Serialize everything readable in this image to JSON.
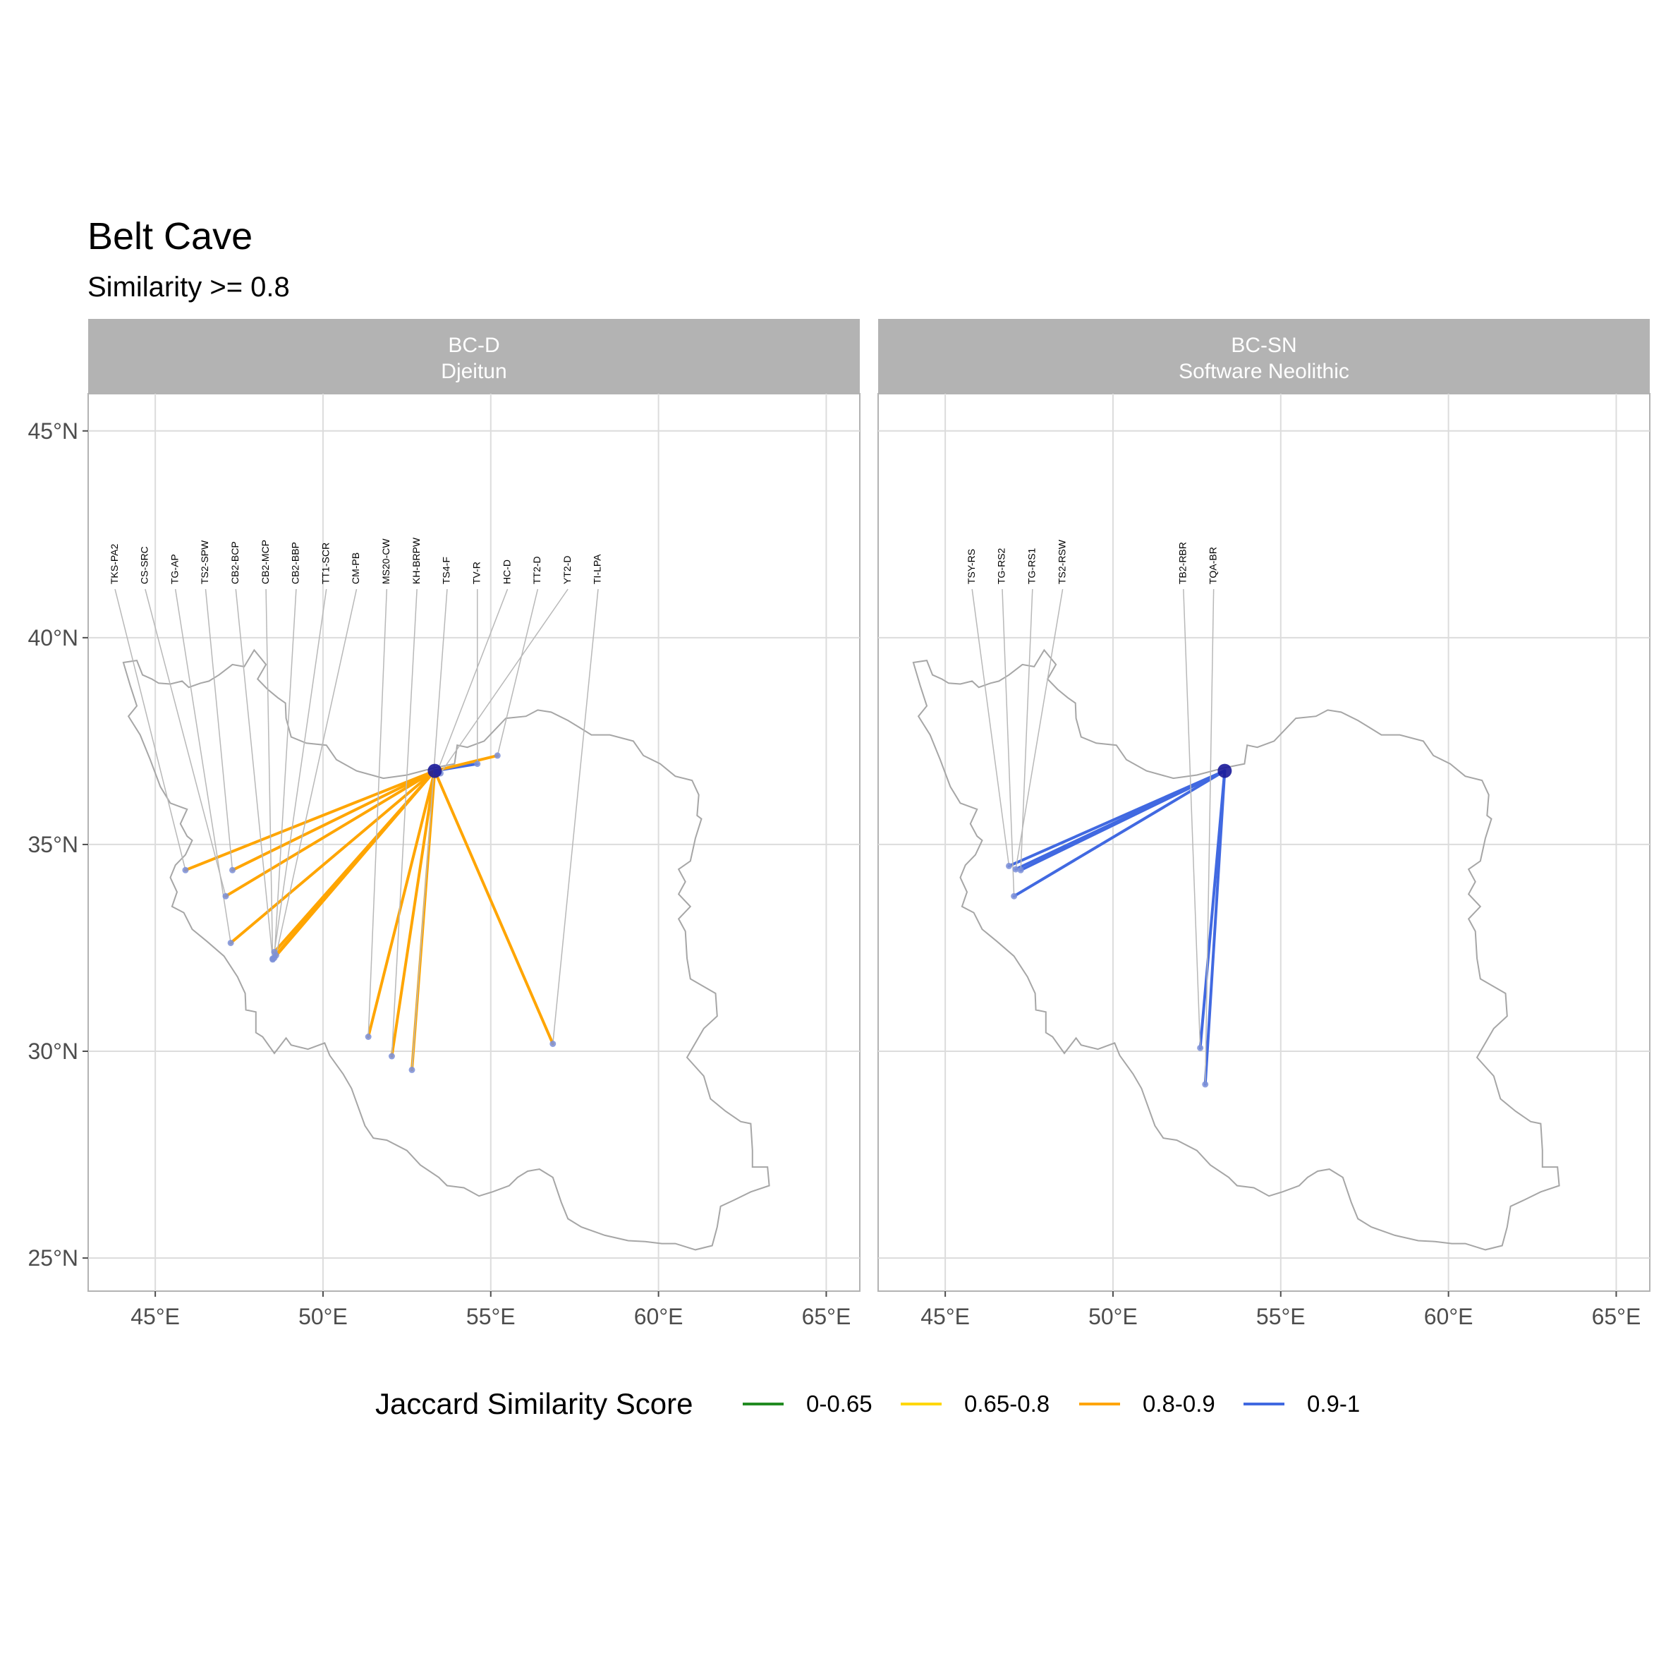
{
  "title": "Belt Cave",
  "subtitle": "Similarity >= 0.8",
  "colors": {
    "0-0.65": "#228B22",
    "0.65-0.8": "#FFD700",
    "0.8-0.9": "#FFA500",
    "0.9-1": "#4169E1",
    "focal_point": "#1a1a9a",
    "target_point": "#7b8fd8",
    "outline": "#a6a6a6",
    "grid": "#dcdcdc",
    "strip": "#b3b3b3"
  },
  "axes": {
    "x_ticks": [
      {
        "value": 45,
        "label": "45°E"
      },
      {
        "value": 50,
        "label": "50°E"
      },
      {
        "value": 55,
        "label": "55°E"
      },
      {
        "value": 60,
        "label": "60°E"
      },
      {
        "value": 65,
        "label": "65°E"
      }
    ],
    "y_ticks": [
      {
        "value": 45,
        "label": "45°N"
      },
      {
        "value": 40,
        "label": "40°N"
      },
      {
        "value": 35,
        "label": "35°N"
      },
      {
        "value": 30,
        "label": "30°N"
      },
      {
        "value": 25,
        "label": "25°N"
      }
    ],
    "xlim": [
      43.0,
      66.0
    ],
    "ylim": [
      24.2,
      45.9
    ]
  },
  "legend": {
    "title": "Jaccard Similarity Score",
    "items": [
      {
        "key": "0-0.65",
        "label": "0-0.65"
      },
      {
        "key": "0.65-0.8",
        "label": "0.65-0.8"
      },
      {
        "key": "0.8-0.9",
        "label": "0.8-0.9"
      },
      {
        "key": "0.9-1",
        "label": "0.9-1"
      }
    ]
  },
  "chart_data": {
    "type": "map",
    "grid": true,
    "legend_position": "bottom",
    "focal_site": {
      "lon": 53.33,
      "lat": 36.78
    },
    "panels": [
      {
        "id": "bc-d",
        "strip_line1": "BC-D",
        "strip_line2": "Djeitun",
        "connections": [
          {
            "label": "TKS-PA2",
            "lon": 45.9,
            "lat": 34.38,
            "score": "0.8-0.9",
            "label_lon": 43.8
          },
          {
            "label": "CS-SRC",
            "lon": 47.1,
            "lat": 33.75,
            "score": "0.8-0.9",
            "label_lon": 44.7
          },
          {
            "label": "TG-AP",
            "lon": 47.25,
            "lat": 32.62,
            "score": "0.8-0.9",
            "label_lon": 45.6
          },
          {
            "label": "TS2-SPW",
            "lon": 47.3,
            "lat": 34.38,
            "score": "0.8-0.9",
            "label_lon": 46.5
          },
          {
            "label": "CB2-BCP",
            "lon": 48.5,
            "lat": 32.22,
            "score": "0.8-0.9",
            "label_lon": 47.4
          },
          {
            "label": "CB2-MCP",
            "lon": 48.5,
            "lat": 32.24,
            "score": "0.8-0.9",
            "label_lon": 48.3
          },
          {
            "label": "CB2-BBP",
            "lon": 48.55,
            "lat": 32.26,
            "score": "0.8-0.9",
            "label_lon": 49.2
          },
          {
            "label": "TT1-SCR",
            "lon": 48.55,
            "lat": 32.4,
            "score": "0.8-0.9",
            "label_lon": 50.1
          },
          {
            "label": "CM-PB",
            "lon": 48.6,
            "lat": 32.32,
            "score": "0.8-0.9",
            "label_lon": 51.0
          },
          {
            "label": "MS20-CW",
            "lon": 51.35,
            "lat": 30.35,
            "score": "0.8-0.9",
            "label_lon": 51.9
          },
          {
            "label": "KH-BRPW",
            "lon": 52.05,
            "lat": 29.88,
            "score": "0.8-0.9",
            "label_lon": 52.8
          },
          {
            "label": "TS4-F",
            "lon": 52.65,
            "lat": 29.55,
            "score": "0.8-0.9",
            "label_lon": 53.7
          },
          {
            "label": "TV-R",
            "lon": 54.6,
            "lat": 36.95,
            "score": "0.9-1",
            "label_lon": 54.6
          },
          {
            "label": "HC-D",
            "lon": 53.4,
            "lat": 36.75,
            "score": "0.9-1",
            "label_lon": 55.5
          },
          {
            "label": "TT2-D",
            "lon": 55.2,
            "lat": 37.15,
            "score": "0.8-0.9",
            "label_lon": 56.4
          },
          {
            "label": "YT2-D",
            "lon": 53.5,
            "lat": 36.72,
            "score": "0.9-1",
            "label_lon": 57.3
          },
          {
            "label": "TI-LPA",
            "lon": 56.85,
            "lat": 30.18,
            "score": "0.8-0.9",
            "label_lon": 58.2
          }
        ]
      },
      {
        "id": "bc-sn",
        "strip_line1": "BC-SN",
        "strip_line2": "Software Neolithic",
        "connections": [
          {
            "label": "TSY-RS",
            "lon": 46.9,
            "lat": 34.48,
            "score": "0.9-1",
            "label_lon": 45.8
          },
          {
            "label": "TG-RS2",
            "lon": 47.05,
            "lat": 33.75,
            "score": "0.9-1",
            "label_lon": 46.7
          },
          {
            "label": "TG-RS1",
            "lon": 47.25,
            "lat": 34.38,
            "score": "0.9-1",
            "label_lon": 47.6
          },
          {
            "label": "TS2-RSW",
            "lon": 47.1,
            "lat": 34.4,
            "score": "0.9-1",
            "label_lon": 48.5
          },
          {
            "label": "TB2-RBR",
            "lon": 52.6,
            "lat": 30.08,
            "score": "0.9-1",
            "label_lon": 52.1
          },
          {
            "label": "TQA-BR",
            "lon": 52.75,
            "lat": 29.2,
            "score": "0.9-1",
            "label_lon": 53.0
          }
        ]
      }
    ],
    "outline_coords": [
      [
        44.05,
        39.4
      ],
      [
        44.45,
        39.45
      ],
      [
        44.62,
        39.1
      ],
      [
        44.9,
        39.0
      ],
      [
        45.1,
        38.9
      ],
      [
        45.45,
        38.88
      ],
      [
        45.8,
        38.95
      ],
      [
        46.0,
        38.8
      ],
      [
        46.35,
        38.9
      ],
      [
        46.6,
        38.95
      ],
      [
        46.9,
        39.1
      ],
      [
        47.3,
        39.35
      ],
      [
        47.65,
        39.3
      ],
      [
        47.95,
        39.7
      ],
      [
        48.3,
        39.35
      ],
      [
        48.05,
        39.0
      ],
      [
        48.35,
        38.75
      ],
      [
        48.65,
        38.55
      ],
      [
        48.88,
        38.42
      ],
      [
        48.9,
        38.05
      ],
      [
        49.05,
        37.6
      ],
      [
        49.5,
        37.45
      ],
      [
        50.1,
        37.4
      ],
      [
        50.4,
        37.05
      ],
      [
        51.0,
        36.78
      ],
      [
        51.8,
        36.6
      ],
      [
        52.5,
        36.68
      ],
      [
        53.3,
        36.85
      ],
      [
        53.92,
        36.95
      ],
      [
        54.0,
        37.4
      ],
      [
        54.3,
        37.35
      ],
      [
        54.8,
        37.5
      ],
      [
        55.45,
        38.05
      ],
      [
        56.05,
        38.1
      ],
      [
        56.4,
        38.25
      ],
      [
        56.8,
        38.2
      ],
      [
        57.3,
        38.0
      ],
      [
        57.6,
        37.85
      ],
      [
        58.0,
        37.65
      ],
      [
        58.55,
        37.65
      ],
      [
        59.25,
        37.5
      ],
      [
        59.55,
        37.15
      ],
      [
        60.05,
        36.95
      ],
      [
        60.5,
        36.65
      ],
      [
        61.0,
        36.55
      ],
      [
        61.2,
        36.2
      ],
      [
        61.15,
        35.7
      ],
      [
        61.28,
        35.62
      ],
      [
        61.1,
        35.15
      ],
      [
        60.95,
        34.6
      ],
      [
        60.6,
        34.4
      ],
      [
        60.8,
        34.1
      ],
      [
        60.6,
        33.8
      ],
      [
        60.95,
        33.5
      ],
      [
        60.6,
        33.2
      ],
      [
        60.8,
        32.9
      ],
      [
        60.85,
        32.25
      ],
      [
        60.95,
        31.75
      ],
      [
        61.7,
        31.4
      ],
      [
        61.75,
        30.85
      ],
      [
        61.35,
        30.55
      ],
      [
        60.85,
        29.85
      ],
      [
        61.35,
        29.4
      ],
      [
        61.55,
        28.85
      ],
      [
        62.0,
        28.55
      ],
      [
        62.45,
        28.3
      ],
      [
        62.75,
        28.25
      ],
      [
        62.8,
        27.6
      ],
      [
        62.8,
        27.2
      ],
      [
        63.25,
        27.2
      ],
      [
        63.3,
        26.75
      ],
      [
        62.75,
        26.6
      ],
      [
        62.25,
        26.4
      ],
      [
        61.85,
        26.25
      ],
      [
        61.75,
        25.75
      ],
      [
        61.6,
        25.3
      ],
      [
        61.1,
        25.2
      ],
      [
        60.5,
        25.35
      ],
      [
        60.1,
        25.35
      ],
      [
        59.6,
        25.4
      ],
      [
        59.1,
        25.42
      ],
      [
        58.4,
        25.55
      ],
      [
        57.7,
        25.75
      ],
      [
        57.3,
        25.95
      ],
      [
        57.1,
        26.35
      ],
      [
        56.85,
        26.95
      ],
      [
        56.45,
        27.15
      ],
      [
        56.1,
        27.1
      ],
      [
        55.8,
        26.95
      ],
      [
        55.55,
        26.75
      ],
      [
        55.05,
        26.6
      ],
      [
        54.65,
        26.5
      ],
      [
        54.2,
        26.7
      ],
      [
        53.7,
        26.75
      ],
      [
        53.45,
        26.95
      ],
      [
        52.9,
        27.25
      ],
      [
        52.5,
        27.6
      ],
      [
        51.9,
        27.85
      ],
      [
        51.5,
        27.9
      ],
      [
        51.25,
        28.2
      ],
      [
        51.05,
        28.65
      ],
      [
        50.85,
        29.1
      ],
      [
        50.6,
        29.45
      ],
      [
        50.2,
        29.9
      ],
      [
        50.05,
        30.2
      ],
      [
        49.55,
        30.05
      ],
      [
        49.05,
        30.15
      ],
      [
        48.9,
        30.32
      ],
      [
        48.55,
        29.95
      ],
      [
        48.2,
        30.35
      ],
      [
        48.0,
        30.45
      ],
      [
        48.0,
        30.95
      ],
      [
        47.7,
        31.0
      ],
      [
        47.68,
        31.4
      ],
      [
        47.45,
        31.8
      ],
      [
        47.05,
        32.3
      ],
      [
        46.55,
        32.65
      ],
      [
        46.1,
        32.95
      ],
      [
        45.85,
        33.35
      ],
      [
        45.5,
        33.5
      ],
      [
        45.65,
        33.85
      ],
      [
        45.45,
        34.2
      ],
      [
        45.6,
        34.5
      ],
      [
        45.9,
        34.75
      ],
      [
        46.1,
        35.1
      ],
      [
        45.95,
        35.2
      ],
      [
        45.75,
        35.5
      ],
      [
        45.95,
        35.85
      ],
      [
        45.45,
        36.0
      ],
      [
        45.15,
        36.4
      ],
      [
        44.85,
        37.05
      ],
      [
        44.75,
        37.25
      ],
      [
        44.55,
        37.65
      ],
      [
        44.2,
        38.1
      ],
      [
        44.45,
        38.35
      ],
      [
        44.25,
        38.85
      ],
      [
        44.05,
        39.4
      ]
    ]
  }
}
